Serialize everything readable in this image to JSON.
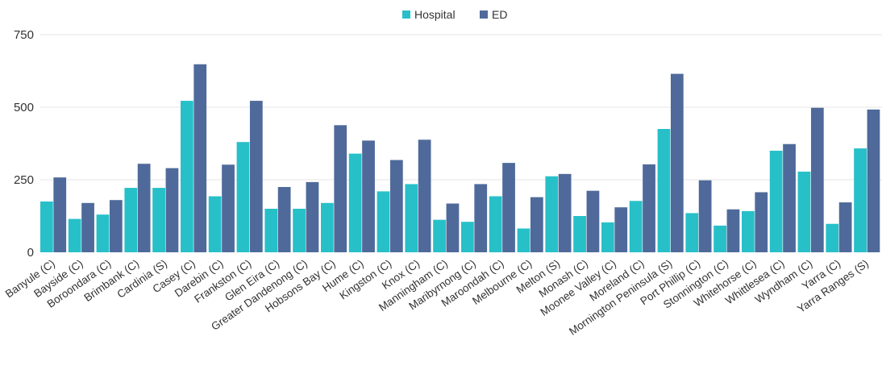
{
  "chart_data": {
    "type": "bar",
    "categories": [
      "Banyule (C)",
      "Bayside (C)",
      "Boroondara (C)",
      "Brimbank (C)",
      "Cardinia (S)",
      "Casey (C)",
      "Darebin (C)",
      "Frankston (C)",
      "Glen Eira (C)",
      "Greater Dandenong (C)",
      "Hobsons Bay (C)",
      "Hume (C)",
      "Kingston (C)",
      "Knox (C)",
      "Manningham (C)",
      "Maribyrnong (C)",
      "Maroondah (C)",
      "Melbourne (C)",
      "Melton (S)",
      "Monash (C)",
      "Moonee Valley (C)",
      "Moreland (C)",
      "Mornington Peninsula (S)",
      "Port Phillip (C)",
      "Stonnington (C)",
      "Whitehorse (C)",
      "Whittlesea (C)",
      "Wyndham (C)",
      "Yarra (C)",
      "Yarra Ranges (S)"
    ],
    "series": [
      {
        "name": "Hospital",
        "color": "#27c0c8",
        "values": [
          175,
          115,
          130,
          222,
          222,
          522,
          193,
          380,
          150,
          150,
          170,
          340,
          210,
          235,
          112,
          105,
          193,
          82,
          262,
          125,
          103,
          177,
          425,
          135,
          92,
          142,
          350,
          278,
          98,
          358
        ]
      },
      {
        "name": "ED",
        "color": "#4f6a9a",
        "values": [
          258,
          170,
          180,
          305,
          290,
          648,
          302,
          522,
          225,
          242,
          438,
          385,
          318,
          388,
          168,
          235,
          308,
          190,
          270,
          212,
          155,
          303,
          615,
          248,
          148,
          207,
          373,
          498,
          172,
          492
        ]
      }
    ],
    "y_ticks": [
      "0",
      "250",
      "500",
      "750"
    ],
    "ylim": [
      0,
      750
    ],
    "grid": true,
    "legend_position": "top-center"
  }
}
